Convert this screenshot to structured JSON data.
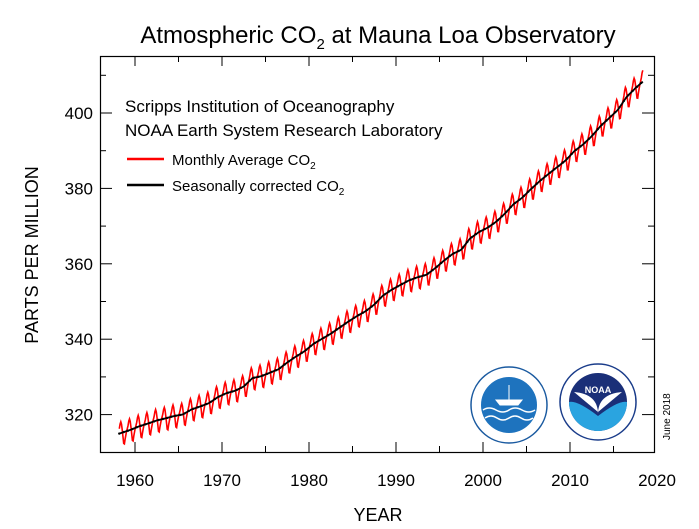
{
  "chart_data": {
    "type": "line",
    "title": {
      "pre": "Atmospheric CO",
      "sub": "2",
      "post": " at Mauna Loa Observatory"
    },
    "subtitle_lines": [
      "Scripps Institution of Oceanography",
      "NOAA Earth System Research Laboratory"
    ],
    "xlabel": "YEAR",
    "ylabel": "PARTS PER MILLION",
    "xlim": [
      1956,
      2019.6
    ],
    "ylim": [
      310,
      415
    ],
    "x_ticks": [
      1960,
      1970,
      1980,
      1990,
      2000,
      2010,
      2020
    ],
    "x_minor_ticks": [
      1965,
      1975,
      1985,
      1995,
      2005,
      2015
    ],
    "y_ticks": [
      320,
      340,
      360,
      380,
      400
    ],
    "y_minor_ticks": [
      330,
      350,
      370,
      390,
      410
    ],
    "legend_position": "top-left",
    "series": [
      {
        "name": {
          "pre": "Monthly Average CO",
          "sub": "2"
        },
        "color": "#ff0000",
        "kind": "monthly"
      },
      {
        "name": {
          "pre": "Seasonally corrected CO",
          "sub": "2"
        },
        "color": "#000000",
        "kind": "trend"
      }
    ],
    "annual_trend": {
      "years": [
        1958,
        1959,
        1960,
        1961,
        1962,
        1963,
        1964,
        1965,
        1966,
        1967,
        1968,
        1969,
        1970,
        1971,
        1972,
        1973,
        1974,
        1975,
        1976,
        1977,
        1978,
        1979,
        1980,
        1981,
        1982,
        1983,
        1984,
        1985,
        1986,
        1987,
        1988,
        1989,
        1990,
        1991,
        1992,
        1993,
        1994,
        1995,
        1996,
        1997,
        1998,
        1999,
        2000,
        2001,
        2002,
        2003,
        2004,
        2005,
        2006,
        2007,
        2008,
        2009,
        2010,
        2011,
        2012,
        2013,
        2014,
        2015,
        2016,
        2017,
        2018
      ],
      "values": [
        315.2,
        315.97,
        316.91,
        317.64,
        318.45,
        318.99,
        319.62,
        320.04,
        321.38,
        322.16,
        323.04,
        324.62,
        325.68,
        326.32,
        327.45,
        329.68,
        330.18,
        331.11,
        332.04,
        333.83,
        335.4,
        336.84,
        338.75,
        340.11,
        341.45,
        343.05,
        344.65,
        346.12,
        347.42,
        349.19,
        351.57,
        353.12,
        354.39,
        355.61,
        356.45,
        357.1,
        358.83,
        360.82,
        362.61,
        363.73,
        366.7,
        368.38,
        369.55,
        371.14,
        373.28,
        375.8,
        377.52,
        379.8,
        381.9,
        383.79,
        385.6,
        387.43,
        389.9,
        391.65,
        393.85,
        396.52,
        398.65,
        400.83,
        404.24,
        406.55,
        408.6
      ]
    },
    "seasonal_cycle_monthly_offset": [
      0.0,
      0.6,
      1.3,
      2.5,
      3.0,
      2.3,
      0.8,
      -1.2,
      -3.0,
      -3.2,
      -2.0,
      -0.9
    ],
    "data_start": 1958.2,
    "data_end": 2018.4
  },
  "logos": {
    "left": "Scripps Institution of Oceanography UCSD",
    "right": "NOAA National Oceanic and Atmospheric Administration U.S. Department of Commerce"
  },
  "date_stamp": "June 2018"
}
